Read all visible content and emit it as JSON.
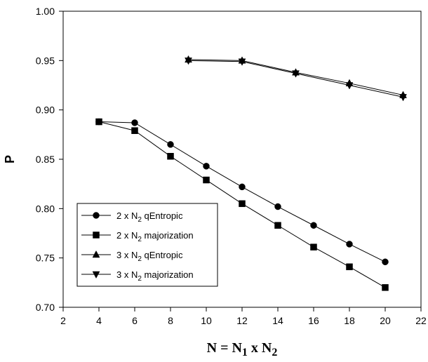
{
  "chart_data": {
    "type": "line",
    "xlabel": {
      "main": "N = N",
      "sub1": "1",
      "mid": " x N",
      "sub2": "2"
    },
    "ylabel": "P",
    "xlim": [
      2,
      22
    ],
    "ylim": [
      0.7,
      1.0
    ],
    "xticks": [
      2,
      4,
      6,
      8,
      10,
      12,
      14,
      16,
      18,
      20,
      22
    ],
    "xtick_labels": [
      "2",
      "4",
      "6",
      "8",
      "10",
      "12",
      "14",
      "16",
      "18",
      "20",
      "22"
    ],
    "yticks": [
      0.7,
      0.75,
      0.8,
      0.85,
      0.9,
      0.95,
      1.0
    ],
    "ytick_labels": [
      "0.70",
      "0.75",
      "0.80",
      "0.85",
      "0.90",
      "0.95",
      "1.00"
    ],
    "grid": false,
    "legend_position": "lower-left",
    "series": [
      {
        "name": {
          "pre": "2 x N",
          "sub": "2",
          "post": " qEntropic"
        },
        "marker": "circle",
        "x": [
          4,
          6,
          8,
          10,
          12,
          14,
          16,
          18,
          20
        ],
        "y": [
          0.888,
          0.887,
          0.865,
          0.843,
          0.822,
          0.802,
          0.783,
          0.764,
          0.746
        ]
      },
      {
        "name": {
          "pre": "2 x N",
          "sub": "2",
          "post": " majorization"
        },
        "marker": "square",
        "x": [
          4,
          6,
          8,
          10,
          12,
          14,
          16,
          18,
          20
        ],
        "y": [
          0.888,
          0.879,
          0.853,
          0.829,
          0.805,
          0.783,
          0.761,
          0.741,
          0.72
        ]
      },
      {
        "name": {
          "pre": "3 x N",
          "sub": "2",
          "post": " qEntropic"
        },
        "marker": "triangle-up",
        "x": [
          9,
          12,
          15,
          18,
          21
        ],
        "y": [
          0.951,
          0.95,
          0.938,
          0.927,
          0.915
        ]
      },
      {
        "name": {
          "pre": "3 x N",
          "sub": "2",
          "post": " majorization"
        },
        "marker": "triangle-down",
        "x": [
          9,
          12,
          15,
          18,
          21
        ],
        "y": [
          0.95,
          0.949,
          0.937,
          0.925,
          0.913
        ]
      }
    ]
  }
}
